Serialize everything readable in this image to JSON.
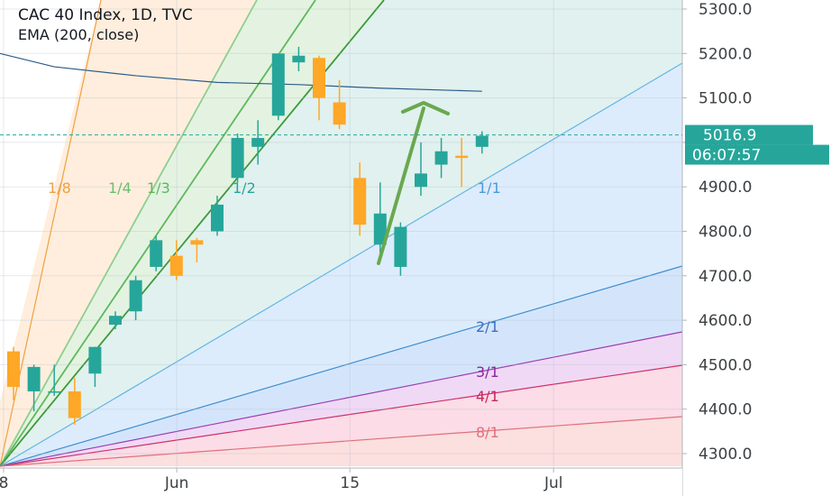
{
  "header": {
    "symbol_line": "CAC 40 Index, 1D, TVC",
    "indicator_line": "EMA (200, close)"
  },
  "chart_data": {
    "type": "candlestick",
    "y_axis": {
      "range": [
        4270,
        5340
      ],
      "ticks": [
        4300,
        4400,
        4500,
        4600,
        4700,
        4800,
        4900,
        5000,
        5100,
        5200,
        5300
      ],
      "tick_labels": [
        "4300.0",
        "4400.0",
        "4500.0",
        "4600.0",
        "4700.0",
        "4800.0",
        "4900.0",
        "5000.0",
        "5100.0",
        "5200.0",
        "5300.0"
      ],
      "scale": "linear",
      "side": "right"
    },
    "x_axis": {
      "tick_labels": [
        {
          "label": "8",
          "index": 0
        },
        {
          "label": "Jun",
          "index": 8.5
        },
        {
          "label": "15",
          "index": 17
        },
        {
          "label": "Jul",
          "index": 27
        }
      ]
    },
    "grid": true,
    "candles": [
      {
        "i": 0,
        "o": 4530,
        "h": 4540,
        "l": 4420,
        "c": 4450
      },
      {
        "i": 1,
        "o": 4440,
        "h": 4500,
        "l": 4395,
        "c": 4495
      },
      {
        "i": 2,
        "o": 4440,
        "h": 4500,
        "l": 4430,
        "c": 4440
      },
      {
        "i": 3,
        "o": 4440,
        "h": 4470,
        "l": 4365,
        "c": 4380
      },
      {
        "i": 4,
        "o": 4480,
        "h": 4540,
        "l": 4450,
        "c": 4540
      },
      {
        "i": 5,
        "o": 4590,
        "h": 4620,
        "l": 4580,
        "c": 4610
      },
      {
        "i": 6,
        "o": 4620,
        "h": 4700,
        "l": 4600,
        "c": 4690
      },
      {
        "i": 7,
        "o": 4720,
        "h": 4790,
        "l": 4710,
        "c": 4780
      },
      {
        "i": 8,
        "o": 4745,
        "h": 4780,
        "l": 4690,
        "c": 4700
      },
      {
        "i": 9,
        "o": 4780,
        "h": 4785,
        "l": 4730,
        "c": 4770
      },
      {
        "i": 10,
        "o": 4800,
        "h": 4880,
        "l": 4790,
        "c": 4860
      },
      {
        "i": 11,
        "o": 4920,
        "h": 5020,
        "l": 4910,
        "c": 5010
      },
      {
        "i": 12,
        "o": 4990,
        "h": 5050,
        "l": 4950,
        "c": 5010
      },
      {
        "i": 13,
        "o": 5060,
        "h": 5200,
        "l": 5050,
        "c": 5200
      },
      {
        "i": 14,
        "o": 5180,
        "h": 5215,
        "l": 5160,
        "c": 5195
      },
      {
        "i": 15,
        "o": 5190,
        "h": 5195,
        "l": 5050,
        "c": 5100
      },
      {
        "i": 16,
        "o": 5090,
        "h": 5140,
        "l": 5030,
        "c": 5040
      },
      {
        "i": 17,
        "o": 4920,
        "h": 4955,
        "l": 4790,
        "c": 4815
      },
      {
        "i": 18,
        "o": 4770,
        "h": 4910,
        "l": 4750,
        "c": 4840
      },
      {
        "i": 19,
        "o": 4720,
        "h": 4820,
        "l": 4700,
        "c": 4810
      },
      {
        "i": 20,
        "o": 4900,
        "h": 5000,
        "l": 4880,
        "c": 4930
      },
      {
        "i": 21,
        "o": 4950,
        "h": 5010,
        "l": 4920,
        "c": 4980
      },
      {
        "i": 22,
        "o": 4970,
        "h": 5010,
        "l": 4900,
        "c": 4965
      },
      {
        "i": 23,
        "o": 4990,
        "h": 5025,
        "l": 4975,
        "c": 5015
      }
    ],
    "ema_200": [
      {
        "i": -1,
        "v": 5200
      },
      {
        "i": 2,
        "v": 5170
      },
      {
        "i": 6,
        "v": 5150
      },
      {
        "i": 10,
        "v": 5135
      },
      {
        "i": 14,
        "v": 5130
      },
      {
        "i": 18,
        "v": 5122
      },
      {
        "i": 23,
        "v": 5115
      }
    ],
    "gann_fan_labels": [
      "1/8",
      "1/4",
      "1/3",
      "1/2",
      "1/1",
      "2/1",
      "3/1",
      "4/1",
      "8/1"
    ],
    "last_price": {
      "value": 5016.9,
      "label": "5016.9",
      "countdown": "06:07:57"
    },
    "colors": {
      "up": "#26a69a",
      "down": "#ffa726",
      "ema": "#2a5c8a",
      "arrow": "#6aa84f",
      "price_tag": "#26a69a"
    }
  }
}
